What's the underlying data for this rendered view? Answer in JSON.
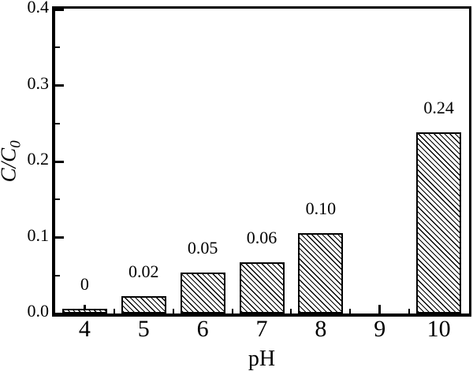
{
  "figure": {
    "background_color": "#ffffff",
    "frame_color": "#000000",
    "text_color": "#000000"
  },
  "chart_data": {
    "type": "bar",
    "title": "",
    "xlabel": "pH",
    "ylabel": "C/C0",
    "ylabel_main": "C/C",
    "ylabel_sub": "0",
    "categories": [
      "4",
      "5",
      "6",
      "7",
      "8",
      "9",
      "10"
    ],
    "category_values": [
      4,
      5,
      6,
      7,
      8,
      9,
      10
    ],
    "values": [
      0,
      0.02,
      0.05,
      0.06,
      0.1,
      null,
      0.24
    ],
    "bar_value_labels": [
      "0",
      "0.02",
      "0.05",
      "0.06",
      "0.10",
      "",
      "0.24"
    ],
    "display_heights": [
      0.006,
      0.023,
      0.054,
      0.067,
      0.106,
      0,
      0.238
    ],
    "xlim": [
      3.5,
      10.5
    ],
    "ylim": [
      0,
      0.4
    ],
    "y_major_ticks": [
      0,
      0.1,
      0.2,
      0.3,
      0.4
    ],
    "y_tick_labels": [
      "0.0",
      "0.1",
      "0.2",
      "0.3",
      "0.4"
    ],
    "y_minor_ticks": [
      0.05,
      0.15,
      0.25,
      0.35
    ],
    "x_major_ticks": [
      4,
      5,
      6,
      7,
      8,
      9,
      10
    ],
    "x_minor_ticks": [
      4.5,
      5.5,
      6.5,
      7.5,
      8.5,
      9.5
    ],
    "grid": false,
    "legend": null,
    "tick_direction": "in",
    "bar_style": {
      "fill": "#ffffff",
      "hatch": "backslash-diagonal",
      "edge_color": "#000000"
    }
  }
}
